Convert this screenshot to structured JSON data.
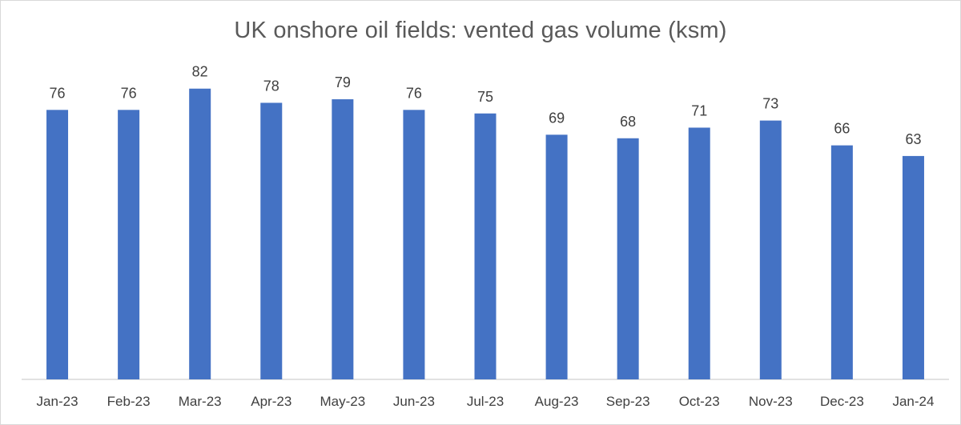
{
  "chart_data": {
    "type": "bar",
    "title": "UK onshore oil fields: vented gas volume (ksm)",
    "categories": [
      "Jan-23",
      "Feb-23",
      "Mar-23",
      "Apr-23",
      "May-23",
      "Jun-23",
      "Jul-23",
      "Aug-23",
      "Sep-23",
      "Oct-23",
      "Nov-23",
      "Dec-23",
      "Jan-24"
    ],
    "values": [
      76,
      76,
      82,
      78,
      79,
      76,
      75,
      69,
      68,
      71,
      73,
      66,
      63
    ],
    "ylim": [
      0,
      100
    ],
    "grid": false,
    "legend": false,
    "data_labels": true,
    "colors": {
      "bar": "#4472C4",
      "axis": "#d9d9d9",
      "text": "#404040",
      "title": "#595959"
    }
  }
}
